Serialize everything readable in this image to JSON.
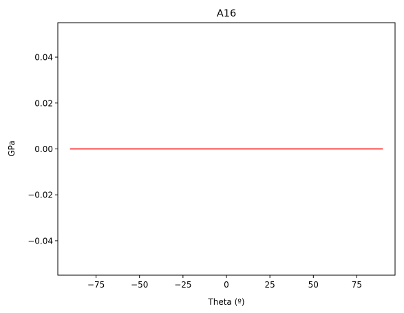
{
  "chart_data": {
    "type": "line",
    "title": "A16",
    "xlabel": "Theta (º)",
    "ylabel": "GPa",
    "xlim": [
      -97,
      97
    ],
    "ylim": [
      -0.055,
      0.055
    ],
    "xticks": [
      -75,
      -50,
      -25,
      0,
      25,
      50,
      75
    ],
    "yticks": [
      -0.04,
      -0.02,
      0.0,
      0.02,
      0.04
    ],
    "ytick_labels": [
      "−0.04",
      "−0.02",
      "0.00",
      "0.02",
      "0.04"
    ],
    "xtick_labels": [
      "−75",
      "−50",
      "−25",
      "0",
      "25",
      "50",
      "75"
    ],
    "grid": false,
    "series": [
      {
        "color": "#ff0000",
        "x": [
          -90,
          90
        ],
        "y": [
          0,
          0
        ]
      }
    ]
  }
}
